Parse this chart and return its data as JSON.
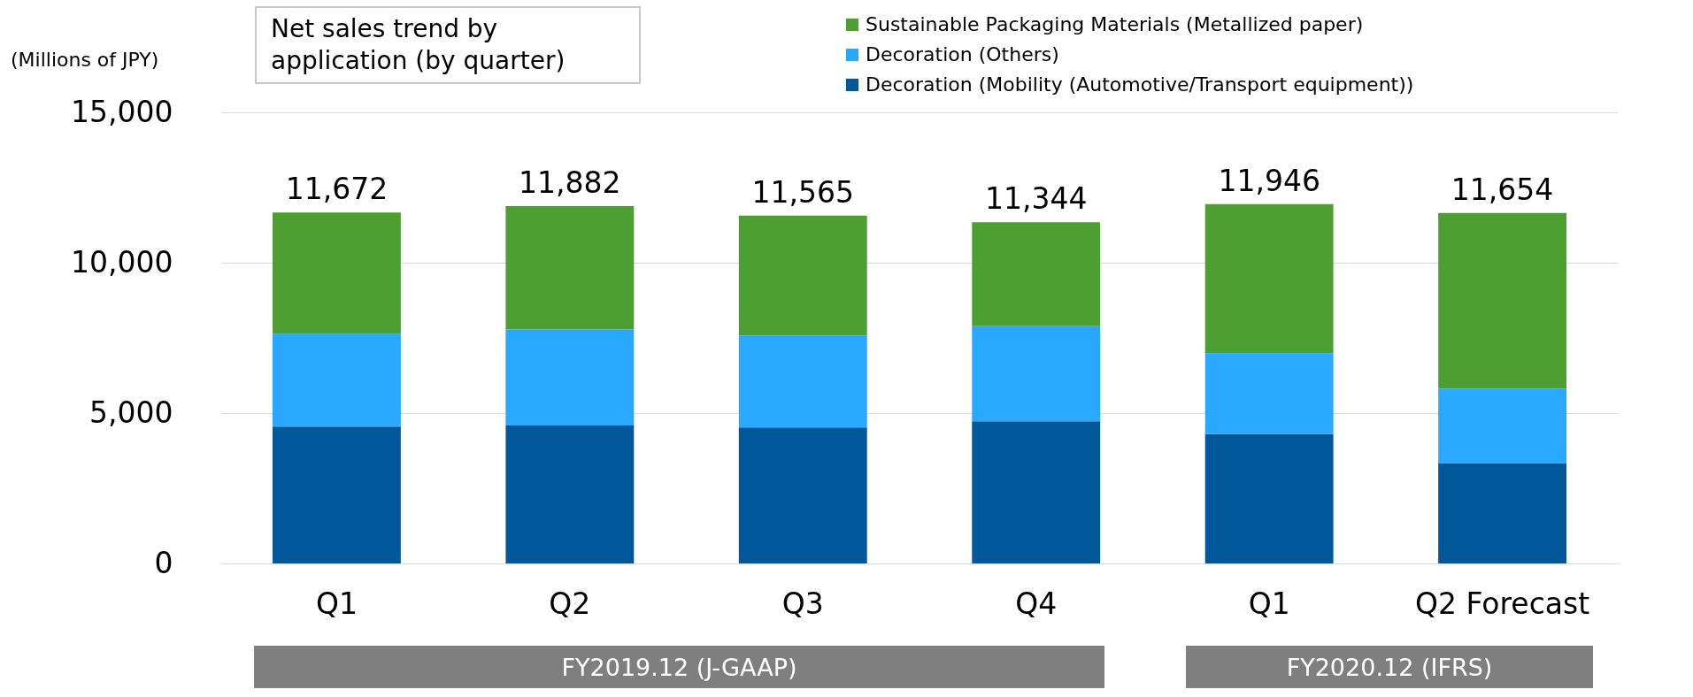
{
  "chart_data": {
    "type": "bar",
    "title": "Net sales trend by application (by quarter)",
    "ylabel": "(Millions of JPY)",
    "stacked": true,
    "categories": [
      "Q1",
      "Q2",
      "Q3",
      "Q4",
      "Q1",
      "Q2 Forecast"
    ],
    "series": [
      {
        "name": "Decoration (Mobility (Automotive/Transport equipment))",
        "color": "#00589b",
        "values": [
          4550,
          4590,
          4520,
          4730,
          4300,
          3340
        ]
      },
      {
        "name": "Decoration (Others)",
        "color": "#29a8ff",
        "values": [
          3090,
          3190,
          3050,
          3160,
          2690,
          2470
        ]
      },
      {
        "name": "Sustainable Packaging Materials (Metallized paper)",
        "color": "#4e9f31",
        "values": [
          4032,
          4102,
          3995,
          3454,
          4956,
          5844
        ]
      }
    ],
    "totals": [
      "11,672",
      "11,882",
      "11,565",
      "11,344",
      "11,946",
      "11,654"
    ],
    "ylim": [
      0,
      15000
    ],
    "yticks": [
      0,
      {
        "value": 5000,
        "label": "5,000"
      },
      {
        "value": 10000,
        "label": "10,000"
      },
      {
        "value": 15000,
        "label": "15,000"
      }
    ],
    "grid": "y",
    "legend": "top right",
    "annotations": [
      "FY2019.12 (J-GAAP)",
      "FY2020.12 (IFRS)"
    ]
  }
}
